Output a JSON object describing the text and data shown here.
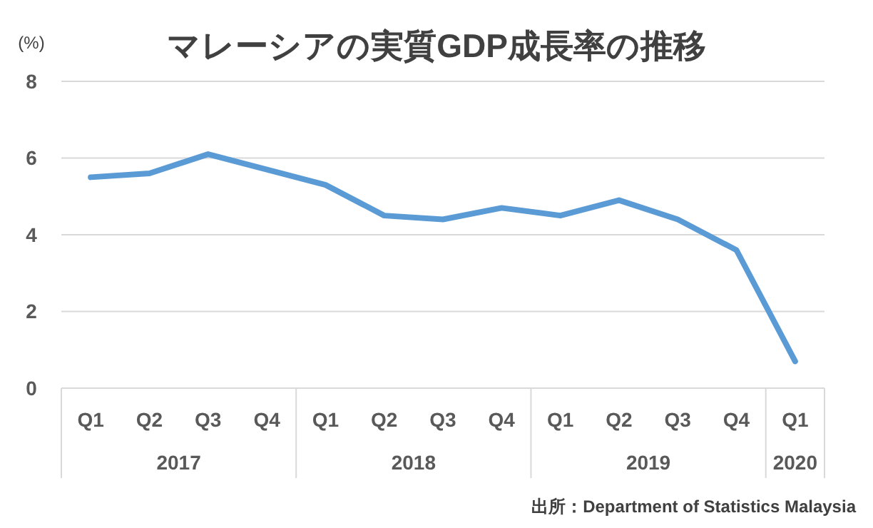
{
  "chart_data": {
    "type": "line",
    "title": "マレーシアの実質GDP成長率の推移",
    "ylabel": "(%)",
    "categories": [
      "Q1",
      "Q2",
      "Q3",
      "Q4",
      "Q1",
      "Q2",
      "Q3",
      "Q4",
      "Q1",
      "Q2",
      "Q3",
      "Q4",
      "Q1"
    ],
    "series": [
      {
        "color": "#5b9bd5",
        "values": [
          5.5,
          5.6,
          6.1,
          5.7,
          5.3,
          4.5,
          4.4,
          4.7,
          4.5,
          4.9,
          4.4,
          3.6,
          0.7
        ]
      }
    ],
    "ylim": [
      0,
      8
    ],
    "yticks": [
      0,
      2,
      4,
      6,
      8
    ],
    "grid": "y",
    "marker": "none",
    "line_style": "solid",
    "annotations": [
      "2017",
      "2018",
      "2019",
      "2020",
      "出所：Department of Statistics Malaysia"
    ]
  }
}
